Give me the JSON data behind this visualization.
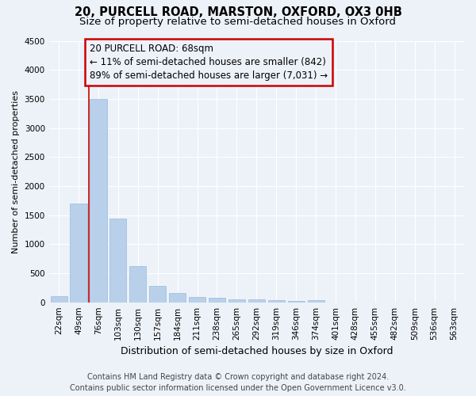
{
  "title1": "20, PURCELL ROAD, MARSTON, OXFORD, OX3 0HB",
  "title2": "Size of property relative to semi-detached houses in Oxford",
  "xlabel": "Distribution of semi-detached houses by size in Oxford",
  "ylabel": "Number of semi-detached properties",
  "bar_values": [
    110,
    1700,
    3500,
    1440,
    620,
    280,
    155,
    90,
    75,
    55,
    50,
    30,
    20,
    40,
    0,
    0,
    0,
    0,
    0,
    0,
    0
  ],
  "categories": [
    "22sqm",
    "49sqm",
    "76sqm",
    "103sqm",
    "130sqm",
    "157sqm",
    "184sqm",
    "211sqm",
    "238sqm",
    "265sqm",
    "292sqm",
    "319sqm",
    "346sqm",
    "374sqm",
    "401sqm",
    "428sqm",
    "455sqm",
    "482sqm",
    "509sqm",
    "536sqm",
    "563sqm"
  ],
  "bar_color": "#b8d0ea",
  "bar_edge_color": "#9ab8d8",
  "ylim": [
    0,
    4500
  ],
  "yticks": [
    0,
    500,
    1000,
    1500,
    2000,
    2500,
    3000,
    3500,
    4000,
    4500
  ],
  "red_line_bar_index": 2,
  "annotation_title": "20 PURCELL ROAD: 68sqm",
  "annotation_line1": "← 11% of semi-detached houses are smaller (842)",
  "annotation_line2": "89% of semi-detached houses are larger (7,031) →",
  "vline_color": "#cc0000",
  "box_edge_color": "#cc0000",
  "footer1": "Contains HM Land Registry data © Crown copyright and database right 2024.",
  "footer2": "Contains public sector information licensed under the Open Government Licence v3.0.",
  "bg_color": "#edf2f9",
  "grid_color": "#ffffff",
  "title1_fontsize": 10.5,
  "title2_fontsize": 9.5,
  "xlabel_fontsize": 9,
  "ylabel_fontsize": 8,
  "footer_fontsize": 7,
  "annotation_fontsize": 8.5,
  "tick_fontsize": 7.5
}
